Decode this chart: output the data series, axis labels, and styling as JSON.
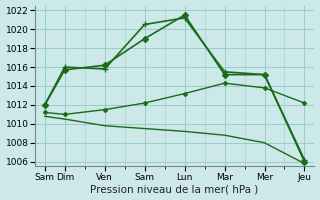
{
  "xlabel": "Pression niveau de la mer( hPa )",
  "ylim": [
    1005.5,
    1022.5
  ],
  "x_labels": [
    "Sam",
    "Dim",
    "Ven",
    "Sam",
    "Lun",
    "Mar",
    "Mer",
    "Jeu"
  ],
  "x_positions": [
    0,
    1,
    3,
    5,
    7,
    9,
    11,
    13
  ],
  "bg_color": "#cce8e8",
  "grid_color": "#99cccc",
  "line_color": "#1a6b1a",
  "series": [
    {
      "x": [
        0,
        1,
        3,
        5,
        7,
        9,
        11,
        13
      ],
      "y": [
        1012.0,
        1015.7,
        1016.2,
        1019.0,
        1021.5,
        1015.2,
        1015.2,
        1006.0
      ],
      "marker": "D",
      "markersize": 3,
      "lw": 1.2
    },
    {
      "x": [
        0,
        1,
        3,
        5,
        7,
        9,
        11,
        13
      ],
      "y": [
        1012.0,
        1016.0,
        1015.8,
        1020.5,
        1021.2,
        1015.5,
        1015.2,
        1006.2
      ],
      "marker": "+",
      "markersize": 5,
      "lw": 1.2
    },
    {
      "x": [
        0,
        1,
        3,
        5,
        7,
        9,
        11,
        13
      ],
      "y": [
        1011.2,
        1011.0,
        1011.5,
        1012.2,
        1013.2,
        1014.3,
        1013.8,
        1012.2
      ],
      "marker": "D",
      "markersize": 2,
      "lw": 1.0
    },
    {
      "x": [
        0,
        1,
        3,
        5,
        7,
        9,
        11,
        13
      ],
      "y": [
        1010.8,
        1010.5,
        1009.8,
        1009.5,
        1009.2,
        1008.8,
        1008.0,
        1005.8
      ],
      "marker": null,
      "markersize": 0,
      "lw": 1.0
    }
  ]
}
